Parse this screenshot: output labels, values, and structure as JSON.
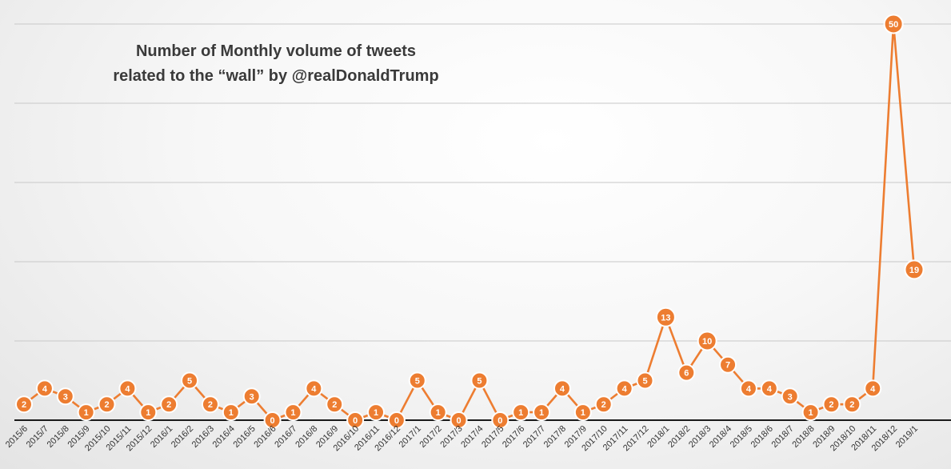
{
  "chart_data": {
    "type": "line",
    "title_lines": [
      "Number of Monthly volume of tweets",
      "related to the “wall” by @realDonaldTrump"
    ],
    "xlabel": "",
    "ylabel": "",
    "ylim": [
      0,
      50
    ],
    "grid": true,
    "legend": "none",
    "series_color": "#ED7D31",
    "categories": [
      "2015/6",
      "2015/7",
      "2015/8",
      "2015/9",
      "2015/10",
      "2015/11",
      "2015/12",
      "2016/1",
      "2016/2",
      "2016/3",
      "2016/4",
      "2016/5",
      "2016/6",
      "2016/7",
      "2016/8",
      "2016/9",
      "2016/10",
      "2016/11",
      "2016/12",
      "2017/1",
      "2017/2",
      "2017/3",
      "2017/4",
      "2017/5",
      "2017/6",
      "2017/7",
      "2017/8",
      "2017/9",
      "2017/10",
      "2017/11",
      "2017/12",
      "2018/1",
      "2018/2",
      "2018/3",
      "2018/4",
      "2018/5",
      "2018/6",
      "2018/7",
      "2018/8",
      "2018/9",
      "2018/10",
      "2018/11",
      "2018/12",
      "2019/1"
    ],
    "series": [
      {
        "values": [
          2,
          4,
          3,
          1,
          2,
          4,
          1,
          2,
          5,
          2,
          1,
          3,
          0,
          1,
          4,
          2,
          0,
          1,
          0,
          5,
          1,
          0,
          5,
          0,
          1,
          1,
          4,
          1,
          2,
          4,
          5,
          13,
          6,
          10,
          7,
          4,
          4,
          3,
          1,
          2,
          2,
          4,
          50,
          19
        ]
      }
    ]
  }
}
